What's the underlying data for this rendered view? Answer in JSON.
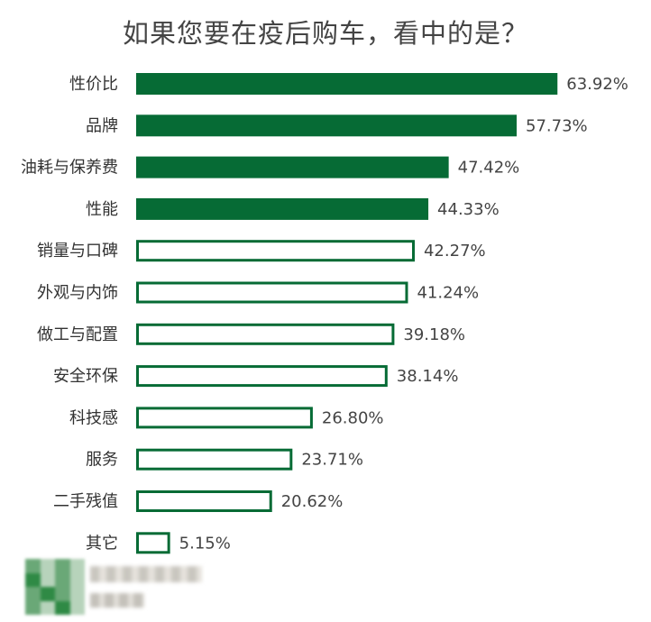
{
  "chart_data": {
    "type": "bar",
    "orientation": "horizontal",
    "title": "如果您要在疫后购车，看中的是？",
    "categories": [
      "性价比",
      "品牌",
      "油耗与保养费",
      "性能",
      "销量与口碑",
      "外观与内饰",
      "做工与配置",
      "安全环保",
      "科技感",
      "服务",
      "二手残值",
      "其它"
    ],
    "values": [
      63.92,
      57.73,
      47.42,
      44.33,
      42.27,
      41.24,
      39.18,
      38.14,
      26.8,
      23.71,
      20.62,
      5.15
    ],
    "value_labels": [
      "63.92%",
      "57.73%",
      "47.42%",
      "44.33%",
      "42.27%",
      "41.24%",
      "39.18%",
      "38.14%",
      "26.80%",
      "23.71%",
      "20.62%",
      "5.15%"
    ],
    "highlighted_count": 4,
    "colors": {
      "bar": "#066b35",
      "outline": "#066b35",
      "hollow_fill": "#ffffff"
    },
    "grid": false,
    "legend": "none",
    "xlim": [
      0,
      64
    ]
  },
  "watermark": {
    "icon": "blurred-qr-logo"
  }
}
